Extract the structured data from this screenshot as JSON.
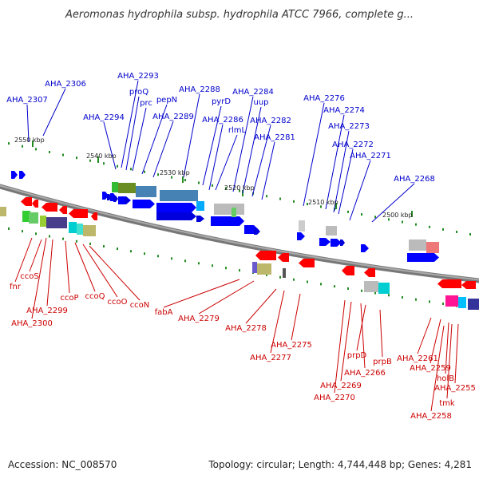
{
  "title": "Aeromonas hydrophila subsp. hydrophila ATCC 7966, complete g...",
  "footer": {
    "accession": "Accession: NC_008570",
    "topology": "Topology: circular; Length: 4,744,448 bp; Genes: 4,281"
  },
  "colors": {
    "forward_label": "#0000cc",
    "reverse_label": "#cc0000",
    "forward_arrow": "#0000ff",
    "reverse_arrow": "#ff0000",
    "backbone": "#777777",
    "tick": "#228b22"
  },
  "scale_labels": [
    "2550 kbp",
    "2540 kbp",
    "2530 kbp",
    "2520 kbp",
    "2510 kbp",
    "2500 kbp"
  ],
  "forward_genes": [
    "AHA_2307",
    "AHA_2306",
    "AHA_2294",
    "AHA_2293",
    "proQ",
    "prc",
    "pepN",
    "AHA_2289",
    "AHA_2288",
    "pyrD",
    "AHA_2286",
    "rlmL",
    "AHA_2284",
    "uup",
    "AHA_2282",
    "AHA_2281",
    "AHA_2276",
    "AHA_2274",
    "AHA_2273",
    "AHA_2272",
    "AHA_2271",
    "AHA_2268"
  ],
  "reverse_genes": [
    "fnr",
    "ccoS",
    "AHA_2299",
    "AHA_2300",
    "ccoP",
    "ccoQ",
    "ccoO",
    "ccoN",
    "fabA",
    "AHA_2279",
    "AHA_2278",
    "AHA_2277",
    "AHA_2275",
    "AHA_2270",
    "AHA_2269",
    "AHA_2266",
    "prpD",
    "prpB",
    "AHA_2261",
    "AHA_2259",
    "holB",
    "AHA_2255",
    "tmk",
    "AHA_2258"
  ]
}
